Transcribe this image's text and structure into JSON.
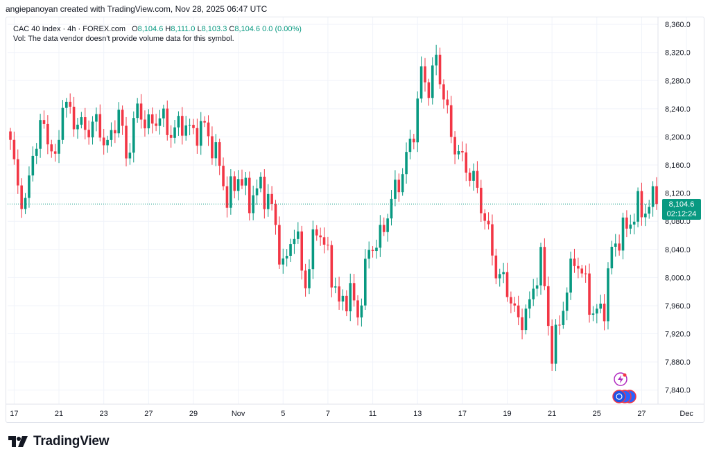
{
  "credit": "angiepanoyan created with TradingView.com, Nov 28, 2025 06:47 UTC",
  "legend": {
    "symbol": "CAC 40 Index · 4h · FOREX.com",
    "o_label": "O",
    "o_value": "8,104.6",
    "h_label": "H",
    "h_value": "8,111.0",
    "l_label": "L",
    "l_value": "8,103.3",
    "c_label": "C",
    "c_value": "8,104.6",
    "change": "0.0 (0.00%)",
    "vol_note": "Vol: The data vendor doesn't provide volume data for this symbol."
  },
  "price_tag": {
    "price": "8,104.6",
    "countdown": "02:12:24"
  },
  "brand": {
    "name": "TradingView"
  },
  "icons": [
    "lightning-icon",
    "avatars-icon"
  ],
  "colors": {
    "up": "#089981",
    "down": "#f23645",
    "grid": "#f0f3fa",
    "text": "#131722"
  },
  "chart_data": {
    "type": "candlestick",
    "title": "CAC 40 Index · 4h · FOREX.com",
    "ylim": [
      7820,
      8370
    ],
    "y_ticks": [
      8360,
      8320,
      8280,
      8240,
      8200,
      8160,
      8120,
      8080,
      8040,
      8000,
      7960,
      7920,
      7880,
      7840
    ],
    "y_tick_labels": [
      "8,360.0",
      "8,320.0",
      "8,280.0",
      "8,240.0",
      "8,200.0",
      "8,160.0",
      "8,120.0",
      "8,080.0",
      "8,040.0",
      "8,000.0",
      "7,960.0",
      "7,920.0",
      "7,880.0",
      "7,840.0"
    ],
    "x_ticks": [
      {
        "label": "17",
        "index": 1
      },
      {
        "label": "21",
        "index": 13
      },
      {
        "label": "23",
        "index": 25
      },
      {
        "label": "27",
        "index": 37
      },
      {
        "label": "29",
        "index": 49
      },
      {
        "label": "Nov",
        "index": 61
      },
      {
        "label": "5",
        "index": 73
      },
      {
        "label": "7",
        "index": 85
      },
      {
        "label": "11",
        "index": 97
      },
      {
        "label": "13",
        "index": 109
      },
      {
        "label": "17",
        "index": 121
      },
      {
        "label": "19",
        "index": 133
      },
      {
        "label": "21",
        "index": 145
      },
      {
        "label": "25",
        "index": 157
      },
      {
        "label": "27",
        "index": 169
      },
      {
        "label": "Dec",
        "index": 181
      }
    ],
    "last_price": 8104.6,
    "anchors": [
      [
        0,
        8190
      ],
      [
        2,
        8130
      ],
      [
        4,
        8100
      ],
      [
        6,
        8180
      ],
      [
        9,
        8220
      ],
      [
        12,
        8160
      ],
      [
        14,
        8250
      ],
      [
        17,
        8225
      ],
      [
        20,
        8210
      ],
      [
        23,
        8220
      ],
      [
        26,
        8185
      ],
      [
        29,
        8238
      ],
      [
        31,
        8170
      ],
      [
        34,
        8240
      ],
      [
        37,
        8215
      ],
      [
        40,
        8230
      ],
      [
        43,
        8205
      ],
      [
        46,
        8220
      ],
      [
        49,
        8205
      ],
      [
        52,
        8215
      ],
      [
        56,
        8160
      ],
      [
        58,
        8110
      ],
      [
        61,
        8145
      ],
      [
        64,
        8110
      ],
      [
        67,
        8130
      ],
      [
        70,
        8100
      ],
      [
        73,
        8010
      ],
      [
        76,
        8070
      ],
      [
        79,
        7990
      ],
      [
        82,
        8075
      ],
      [
        85,
        8030
      ],
      [
        88,
        7960
      ],
      [
        91,
        7980
      ],
      [
        93,
        7945
      ],
      [
        96,
        8040
      ],
      [
        99,
        8055
      ],
      [
        102,
        8110
      ],
      [
        105,
        8150
      ],
      [
        108,
        8210
      ],
      [
        110,
        8290
      ],
      [
        112,
        8270
      ],
      [
        114,
        8310
      ],
      [
        116,
        8260
      ],
      [
        118,
        8200
      ],
      [
        121,
        8165
      ],
      [
        124,
        8140
      ],
      [
        127,
        8085
      ],
      [
        130,
        8010
      ],
      [
        133,
        7985
      ],
      [
        136,
        7935
      ],
      [
        139,
        7960
      ],
      [
        142,
        8030
      ],
      [
        145,
        7890
      ],
      [
        148,
        7960
      ],
      [
        151,
        8030
      ],
      [
        154,
        7990
      ],
      [
        156,
        7945
      ],
      [
        159,
        7960
      ],
      [
        161,
        8040
      ],
      [
        164,
        8065
      ],
      [
        166,
        8080
      ],
      [
        168,
        8100
      ],
      [
        170,
        8095
      ],
      [
        172,
        8110
      ],
      [
        173,
        8104.6
      ]
    ]
  }
}
